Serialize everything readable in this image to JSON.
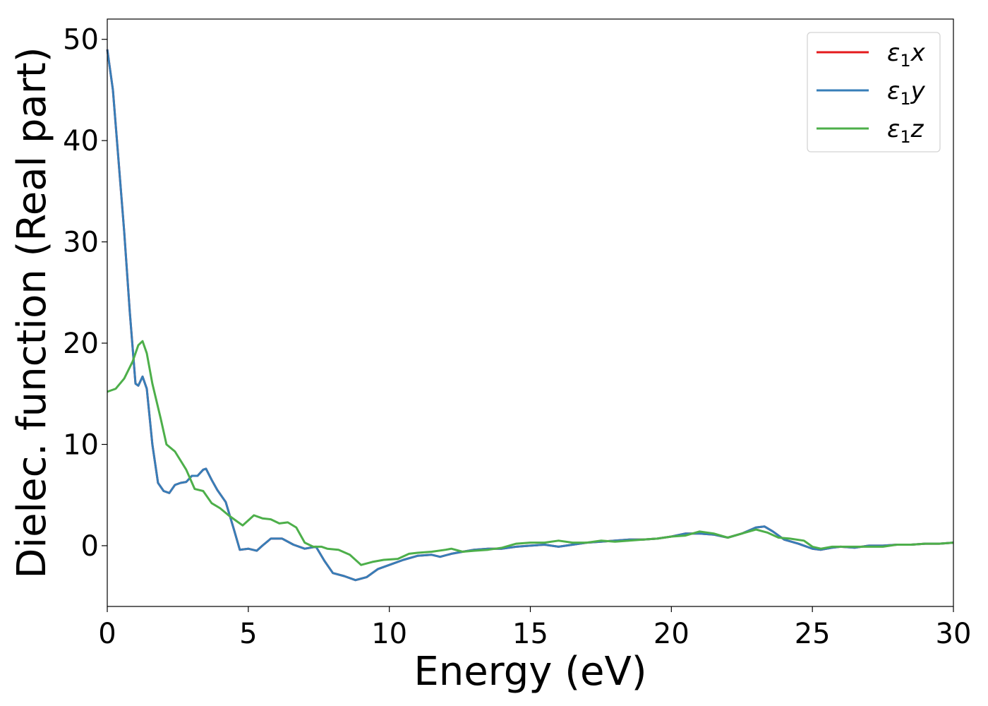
{
  "chart_data": {
    "type": "line",
    "xlabel": "Energy (eV)",
    "ylabel": "Dielec. function (Real part)",
    "xlim": [
      0,
      30
    ],
    "ylim": [
      -6,
      52
    ],
    "x_ticks": [
      0,
      5,
      10,
      15,
      20,
      25,
      30
    ],
    "y_ticks": [
      0,
      10,
      20,
      30,
      40,
      50
    ],
    "grid": false,
    "legend_position": "top-right",
    "series": [
      {
        "name": "ε1x",
        "color": "#e41a1c",
        "points": [
          [
            0,
            49.0
          ],
          [
            0.2,
            45
          ],
          [
            0.4,
            38
          ],
          [
            0.6,
            31
          ],
          [
            0.8,
            23
          ],
          [
            1.0,
            16
          ],
          [
            1.1,
            15.8
          ],
          [
            1.25,
            16.7
          ],
          [
            1.4,
            15.5
          ],
          [
            1.6,
            10
          ],
          [
            1.8,
            6.2
          ],
          [
            2.0,
            5.4
          ],
          [
            2.2,
            5.2
          ],
          [
            2.4,
            6.0
          ],
          [
            2.6,
            6.2
          ],
          [
            2.8,
            6.3
          ],
          [
            3.0,
            6.9
          ],
          [
            3.2,
            6.9
          ],
          [
            3.4,
            7.5
          ],
          [
            3.5,
            7.6
          ],
          [
            3.7,
            6.5
          ],
          [
            3.9,
            5.5
          ],
          [
            4.2,
            4.3
          ],
          [
            4.5,
            1.5
          ],
          [
            4.7,
            -0.4
          ],
          [
            5.0,
            -0.3
          ],
          [
            5.3,
            -0.5
          ],
          [
            5.5,
            0.0
          ],
          [
            5.8,
            0.7
          ],
          [
            6.2,
            0.7
          ],
          [
            6.6,
            0.1
          ],
          [
            7.0,
            -0.3
          ],
          [
            7.4,
            -0.1
          ],
          [
            7.7,
            -1.5
          ],
          [
            8.0,
            -2.7
          ],
          [
            8.4,
            -3.0
          ],
          [
            8.8,
            -3.4
          ],
          [
            9.2,
            -3.1
          ],
          [
            9.6,
            -2.3
          ],
          [
            10.0,
            -1.9
          ],
          [
            10.5,
            -1.4
          ],
          [
            11.0,
            -1.0
          ],
          [
            11.5,
            -0.9
          ],
          [
            11.8,
            -1.1
          ],
          [
            12.2,
            -0.8
          ],
          [
            12.6,
            -0.6
          ],
          [
            13.0,
            -0.4
          ],
          [
            13.5,
            -0.3
          ],
          [
            14.0,
            -0.3
          ],
          [
            14.5,
            -0.1
          ],
          [
            15.0,
            0.0
          ],
          [
            15.5,
            0.1
          ],
          [
            16.0,
            -0.1
          ],
          [
            16.5,
            0.1
          ],
          [
            17.0,
            0.3
          ],
          [
            17.5,
            0.4
          ],
          [
            18.0,
            0.5
          ],
          [
            18.5,
            0.6
          ],
          [
            19.0,
            0.6
          ],
          [
            19.5,
            0.7
          ],
          [
            20.0,
            0.9
          ],
          [
            20.5,
            1.2
          ],
          [
            21.0,
            1.2
          ],
          [
            21.5,
            1.1
          ],
          [
            22.0,
            0.8
          ],
          [
            22.5,
            1.2
          ],
          [
            23.0,
            1.8
          ],
          [
            23.3,
            1.9
          ],
          [
            23.6,
            1.4
          ],
          [
            24.0,
            0.6
          ],
          [
            24.5,
            0.2
          ],
          [
            25.0,
            -0.3
          ],
          [
            25.3,
            -0.4
          ],
          [
            25.7,
            -0.2
          ],
          [
            26.0,
            -0.1
          ],
          [
            26.5,
            -0.2
          ],
          [
            27.0,
            0.0
          ],
          [
            27.5,
            0.0
          ],
          [
            28.0,
            0.1
          ],
          [
            28.5,
            0.1
          ],
          [
            29.0,
            0.2
          ],
          [
            29.5,
            0.2
          ],
          [
            30.0,
            0.3
          ]
        ]
      },
      {
        "name": "ε1y",
        "color": "#377eb8",
        "points": [
          [
            0,
            49.0
          ],
          [
            0.2,
            45
          ],
          [
            0.4,
            38
          ],
          [
            0.6,
            31
          ],
          [
            0.8,
            23
          ],
          [
            1.0,
            16
          ],
          [
            1.1,
            15.8
          ],
          [
            1.25,
            16.7
          ],
          [
            1.4,
            15.5
          ],
          [
            1.6,
            10
          ],
          [
            1.8,
            6.2
          ],
          [
            2.0,
            5.4
          ],
          [
            2.2,
            5.2
          ],
          [
            2.4,
            6.0
          ],
          [
            2.6,
            6.2
          ],
          [
            2.8,
            6.3
          ],
          [
            3.0,
            6.9
          ],
          [
            3.2,
            6.9
          ],
          [
            3.4,
            7.5
          ],
          [
            3.5,
            7.6
          ],
          [
            3.7,
            6.5
          ],
          [
            3.9,
            5.5
          ],
          [
            4.2,
            4.3
          ],
          [
            4.5,
            1.5
          ],
          [
            4.7,
            -0.4
          ],
          [
            5.0,
            -0.3
          ],
          [
            5.3,
            -0.5
          ],
          [
            5.5,
            0.0
          ],
          [
            5.8,
            0.7
          ],
          [
            6.2,
            0.7
          ],
          [
            6.6,
            0.1
          ],
          [
            7.0,
            -0.3
          ],
          [
            7.4,
            -0.1
          ],
          [
            7.7,
            -1.5
          ],
          [
            8.0,
            -2.7
          ],
          [
            8.4,
            -3.0
          ],
          [
            8.8,
            -3.4
          ],
          [
            9.2,
            -3.1
          ],
          [
            9.6,
            -2.3
          ],
          [
            10.0,
            -1.9
          ],
          [
            10.5,
            -1.4
          ],
          [
            11.0,
            -1.0
          ],
          [
            11.5,
            -0.9
          ],
          [
            11.8,
            -1.1
          ],
          [
            12.2,
            -0.8
          ],
          [
            12.6,
            -0.6
          ],
          [
            13.0,
            -0.4
          ],
          [
            13.5,
            -0.3
          ],
          [
            14.0,
            -0.3
          ],
          [
            14.5,
            -0.1
          ],
          [
            15.0,
            0.0
          ],
          [
            15.5,
            0.1
          ],
          [
            16.0,
            -0.1
          ],
          [
            16.5,
            0.1
          ],
          [
            17.0,
            0.3
          ],
          [
            17.5,
            0.4
          ],
          [
            18.0,
            0.5
          ],
          [
            18.5,
            0.6
          ],
          [
            19.0,
            0.6
          ],
          [
            19.5,
            0.7
          ],
          [
            20.0,
            0.9
          ],
          [
            20.5,
            1.2
          ],
          [
            21.0,
            1.2
          ],
          [
            21.5,
            1.1
          ],
          [
            22.0,
            0.8
          ],
          [
            22.5,
            1.2
          ],
          [
            23.0,
            1.8
          ],
          [
            23.3,
            1.9
          ],
          [
            23.6,
            1.4
          ],
          [
            24.0,
            0.6
          ],
          [
            24.5,
            0.2
          ],
          [
            25.0,
            -0.3
          ],
          [
            25.3,
            -0.4
          ],
          [
            25.7,
            -0.2
          ],
          [
            26.0,
            -0.1
          ],
          [
            26.5,
            -0.2
          ],
          [
            27.0,
            0.0
          ],
          [
            27.5,
            0.0
          ],
          [
            28.0,
            0.1
          ],
          [
            28.5,
            0.1
          ],
          [
            29.0,
            0.2
          ],
          [
            29.5,
            0.2
          ],
          [
            30.0,
            0.3
          ]
        ]
      },
      {
        "name": "ε1z",
        "color": "#4daf4a",
        "points": [
          [
            0,
            15.2
          ],
          [
            0.3,
            15.5
          ],
          [
            0.6,
            16.5
          ],
          [
            0.9,
            18.2
          ],
          [
            1.1,
            19.8
          ],
          [
            1.25,
            20.2
          ],
          [
            1.4,
            19.0
          ],
          [
            1.6,
            16.0
          ],
          [
            1.9,
            12.5
          ],
          [
            2.1,
            10.0
          ],
          [
            2.4,
            9.3
          ],
          [
            2.8,
            7.5
          ],
          [
            3.1,
            5.6
          ],
          [
            3.4,
            5.4
          ],
          [
            3.7,
            4.2
          ],
          [
            4.0,
            3.7
          ],
          [
            4.3,
            3.0
          ],
          [
            4.6,
            2.4
          ],
          [
            4.8,
            2.0
          ],
          [
            5.0,
            2.5
          ],
          [
            5.2,
            3.0
          ],
          [
            5.5,
            2.7
          ],
          [
            5.8,
            2.6
          ],
          [
            6.1,
            2.2
          ],
          [
            6.4,
            2.3
          ],
          [
            6.7,
            1.8
          ],
          [
            7.0,
            0.3
          ],
          [
            7.3,
            -0.1
          ],
          [
            7.6,
            -0.1
          ],
          [
            7.8,
            -0.3
          ],
          [
            8.2,
            -0.4
          ],
          [
            8.6,
            -0.9
          ],
          [
            9.0,
            -1.9
          ],
          [
            9.4,
            -1.6
          ],
          [
            9.8,
            -1.4
          ],
          [
            10.3,
            -1.3
          ],
          [
            10.7,
            -0.8
          ],
          [
            11.0,
            -0.7
          ],
          [
            11.5,
            -0.6
          ],
          [
            12.0,
            -0.4
          ],
          [
            12.2,
            -0.3
          ],
          [
            12.6,
            -0.6
          ],
          [
            13.0,
            -0.5
          ],
          [
            13.5,
            -0.4
          ],
          [
            14.0,
            -0.2
          ],
          [
            14.5,
            0.2
          ],
          [
            15.0,
            0.3
          ],
          [
            15.5,
            0.3
          ],
          [
            16.0,
            0.5
          ],
          [
            16.5,
            0.3
          ],
          [
            17.0,
            0.3
          ],
          [
            17.5,
            0.5
          ],
          [
            18.0,
            0.4
          ],
          [
            18.5,
            0.5
          ],
          [
            19.0,
            0.6
          ],
          [
            19.5,
            0.7
          ],
          [
            20.0,
            0.9
          ],
          [
            20.5,
            1.0
          ],
          [
            21.0,
            1.4
          ],
          [
            21.5,
            1.2
          ],
          [
            22.0,
            0.8
          ],
          [
            22.5,
            1.2
          ],
          [
            23.0,
            1.6
          ],
          [
            23.4,
            1.3
          ],
          [
            23.8,
            0.8
          ],
          [
            24.2,
            0.7
          ],
          [
            24.7,
            0.5
          ],
          [
            25.0,
            -0.1
          ],
          [
            25.3,
            -0.3
          ],
          [
            25.7,
            -0.1
          ],
          [
            26.0,
            -0.1
          ],
          [
            26.5,
            -0.1
          ],
          [
            27.0,
            -0.1
          ],
          [
            27.5,
            -0.1
          ],
          [
            28.0,
            0.1
          ],
          [
            28.5,
            0.1
          ],
          [
            29.0,
            0.2
          ],
          [
            29.5,
            0.2
          ],
          [
            30.0,
            0.3
          ]
        ]
      }
    ]
  }
}
